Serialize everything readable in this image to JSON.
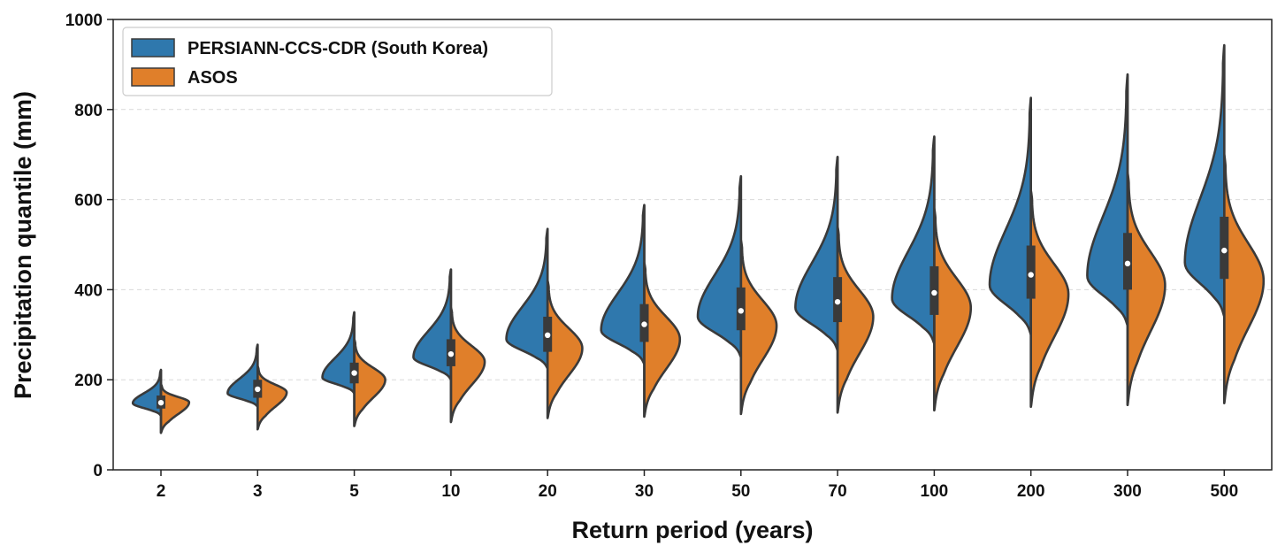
{
  "chart_data": {
    "type": "violin",
    "subtype": "split",
    "title": "",
    "xlabel": "Return period (years)",
    "ylabel": "Precipitation quantile (mm)",
    "ylim": [
      0,
      1000
    ],
    "yticks": [
      0,
      200,
      400,
      600,
      800,
      1000
    ],
    "grid": "horizontal dashed",
    "legend_position": "top-left",
    "colors": {
      "persiann": "#2f78ad",
      "asos": "#e07f2a",
      "outline": "#3a3a3a",
      "box": "#3a3a3a",
      "median": "#ffffff"
    },
    "categories": [
      "2",
      "3",
      "5",
      "10",
      "20",
      "30",
      "50",
      "70",
      "100",
      "200",
      "300",
      "500"
    ],
    "series": [
      {
        "name": "PERSIANN-CCS-CDR (South Korea)",
        "side": "left",
        "min": [
          120,
          140,
          170,
          200,
          225,
          235,
          250,
          265,
          280,
          300,
          320,
          340
        ],
        "mode": [
          148,
          170,
          205,
          250,
          290,
          310,
          340,
          360,
          380,
          410,
          430,
          460
        ],
        "max": [
          222,
          278,
          350,
          445,
          535,
          588,
          652,
          695,
          740,
          826,
          878,
          943
        ],
        "width": [
          0.3,
          0.32,
          0.34,
          0.4,
          0.44,
          0.46,
          0.46,
          0.45,
          0.45,
          0.44,
          0.43,
          0.42
        ]
      },
      {
        "name": "ASOS",
        "side": "right",
        "min": [
          82,
          90,
          97,
          106,
          115,
          118,
          124,
          127,
          132,
          140,
          144,
          148
        ],
        "mode": [
          150,
          172,
          200,
          240,
          270,
          290,
          320,
          340,
          360,
          390,
          410,
          420
        ],
        "max": [
          190,
          230,
          290,
          360,
          420,
          460,
          510,
          540,
          580,
          620,
          660,
          700
        ],
        "width": [
          0.3,
          0.31,
          0.33,
          0.36,
          0.37,
          0.38,
          0.38,
          0.38,
          0.39,
          0.4,
          0.4,
          0.42
        ]
      }
    ],
    "box": {
      "q1": [
        136,
        160,
        192,
        230,
        262,
        284,
        310,
        328,
        344,
        380,
        400,
        424
      ],
      "median": [
        149,
        179,
        215,
        257,
        299,
        323,
        353,
        373,
        393,
        433,
        458,
        487
      ],
      "q3": [
        165,
        200,
        238,
        290,
        340,
        368,
        405,
        428,
        452,
        498,
        526,
        562
      ]
    }
  }
}
